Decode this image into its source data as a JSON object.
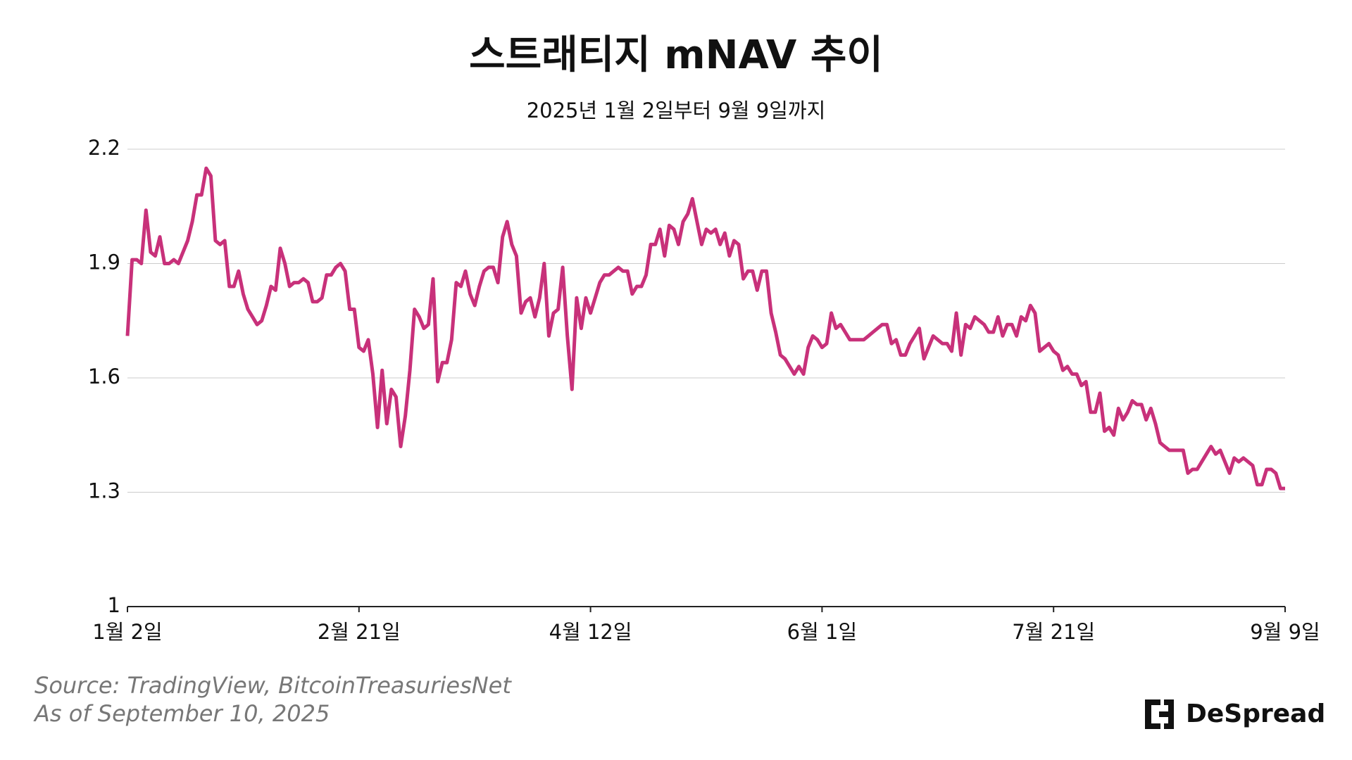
{
  "chart_data": {
    "type": "line",
    "title": "스트래티지 mNAV 추이",
    "subtitle": "2025년 1월 2일부터 9월 9일까지",
    "color": "#c8317a",
    "grid": true,
    "xlim": [
      0,
      250
    ],
    "xticks": [
      {
        "value": 0,
        "label": "1월 2일"
      },
      {
        "value": 50,
        "label": "2월 21일"
      },
      {
        "value": 100,
        "label": "4월 12일"
      },
      {
        "value": 150,
        "label": "6월 1일"
      },
      {
        "value": 200,
        "label": "7월 21일"
      },
      {
        "value": 250,
        "label": "9월 9일"
      }
    ],
    "ylim": [
      1,
      2.2
    ],
    "yticks": [
      1,
      1.3,
      1.6,
      1.9,
      2.2
    ],
    "x": [
      0,
      1,
      2,
      3,
      4,
      5,
      6,
      7,
      8,
      9,
      10,
      11,
      12,
      13,
      14,
      15,
      16,
      17,
      18,
      19,
      20,
      21,
      22,
      23,
      24,
      25,
      26,
      27,
      28,
      29,
      30,
      31,
      32,
      33,
      34,
      35,
      36,
      37,
      38,
      39,
      40,
      41,
      42,
      43,
      44,
      45,
      46,
      47,
      48,
      49,
      50,
      51,
      52,
      53,
      54,
      55,
      56,
      57,
      58,
      59,
      60,
      61,
      62,
      63,
      64,
      65,
      66,
      67,
      68,
      69,
      70,
      71,
      72,
      73,
      74,
      75,
      76,
      77,
      78,
      79,
      80,
      81,
      82,
      83,
      84,
      85,
      86,
      87,
      88,
      89,
      90,
      91,
      92,
      93,
      94,
      95,
      96,
      97,
      98,
      99,
      100,
      101,
      102,
      103,
      104,
      105,
      106,
      107,
      108,
      109,
      110,
      111,
      112,
      113,
      114,
      115,
      116,
      117,
      118,
      119,
      120,
      121,
      122,
      123,
      124,
      125,
      126,
      127,
      128,
      129,
      130,
      131,
      132,
      133,
      134,
      135,
      136,
      137,
      138,
      139,
      140,
      141,
      142,
      143,
      144,
      145,
      146,
      147,
      148,
      149,
      150,
      151,
      152,
      153,
      154,
      155,
      156,
      157,
      158,
      159,
      160,
      161,
      162,
      163,
      164,
      165,
      166,
      167,
      168,
      169,
      170,
      171,
      172,
      173,
      174,
      175,
      176,
      177,
      178,
      179,
      180,
      181,
      182,
      183,
      184,
      185,
      186,
      187,
      188,
      189,
      190,
      191,
      192,
      193,
      194,
      195,
      196,
      197,
      198,
      199,
      200,
      201,
      202,
      203,
      204,
      205,
      206,
      207,
      208,
      209,
      210,
      211,
      212,
      213,
      214,
      215,
      216,
      217,
      218,
      219,
      220,
      221,
      222,
      223,
      224,
      225,
      226,
      227,
      228,
      229,
      230,
      231,
      232,
      233,
      234,
      235,
      236,
      237,
      238,
      239,
      240,
      241,
      242,
      243,
      244,
      245,
      246,
      247,
      248,
      249,
      250
    ],
    "values": [
      1.71,
      1.91,
      1.91,
      1.9,
      2.04,
      1.93,
      1.92,
      1.97,
      1.9,
      1.9,
      1.91,
      1.9,
      1.93,
      1.96,
      2.01,
      2.08,
      2.08,
      2.15,
      2.13,
      1.96,
      1.95,
      1.96,
      1.84,
      1.84,
      1.88,
      1.82,
      1.78,
      1.76,
      1.74,
      1.75,
      1.79,
      1.84,
      1.83,
      1.94,
      1.9,
      1.84,
      1.85,
      1.85,
      1.86,
      1.85,
      1.8,
      1.8,
      1.81,
      1.87,
      1.87,
      1.89,
      1.9,
      1.88,
      1.78,
      1.78,
      1.68,
      1.67,
      1.7,
      1.61,
      1.47,
      1.62,
      1.48,
      1.57,
      1.55,
      1.42,
      1.5,
      1.62,
      1.78,
      1.76,
      1.73,
      1.74,
      1.86,
      1.59,
      1.64,
      1.64,
      1.7,
      1.85,
      1.84,
      1.88,
      1.82,
      1.79,
      1.84,
      1.88,
      1.89,
      1.89,
      1.85,
      1.97,
      2.01,
      1.95,
      1.92,
      1.77,
      1.8,
      1.81,
      1.76,
      1.81,
      1.9,
      1.71,
      1.77,
      1.78,
      1.89,
      1.71,
      1.57,
      1.81,
      1.73,
      1.81,
      1.77,
      1.81,
      1.85,
      1.87,
      1.87,
      1.88,
      1.89,
      1.88,
      1.88,
      1.82,
      1.84,
      1.84,
      1.87,
      1.95,
      1.95,
      1.99,
      1.92,
      2.0,
      1.99,
      1.95,
      2.01,
      2.03,
      2.07,
      2.01,
      1.95,
      1.99,
      1.98,
      1.99,
      1.95,
      1.98,
      1.92,
      1.96,
      1.95,
      1.86,
      1.88,
      1.88,
      1.83,
      1.88,
      1.88,
      1.77,
      1.72,
      1.66,
      1.65,
      1.63,
      1.61,
      1.63,
      1.61,
      1.68,
      1.71,
      1.7,
      1.68,
      1.69,
      1.77,
      1.73,
      1.74,
      1.72,
      1.7,
      1.7,
      1.7,
      1.7,
      1.71,
      1.72,
      1.73,
      1.74,
      1.74,
      1.69,
      1.7,
      1.66,
      1.66,
      1.69,
      1.71,
      1.73,
      1.65,
      1.68,
      1.71,
      1.7,
      1.69,
      1.69,
      1.67,
      1.77,
      1.66,
      1.74,
      1.73,
      1.76,
      1.75,
      1.74,
      1.72,
      1.72,
      1.76,
      1.71,
      1.74,
      1.74,
      1.71,
      1.76,
      1.75,
      1.79,
      1.77,
      1.67,
      1.68,
      1.69,
      1.67,
      1.66,
      1.62,
      1.63,
      1.61,
      1.61,
      1.58,
      1.59,
      1.51,
      1.51,
      1.56,
      1.46,
      1.47,
      1.45,
      1.52,
      1.49,
      1.51,
      1.54,
      1.53,
      1.53,
      1.49,
      1.52,
      1.48,
      1.43,
      1.42,
      1.41,
      1.41,
      1.41,
      1.41,
      1.35,
      1.36,
      1.36,
      1.38,
      1.4,
      1.42,
      1.4,
      1.41,
      1.38,
      1.35,
      1.39,
      1.38,
      1.39,
      1.38,
      1.37,
      1.32,
      1.32,
      1.36,
      1.36,
      1.35,
      1.31,
      1.31
    ]
  },
  "footer": {
    "source": "Source: TradingView, BitcoinTreasuriesNet",
    "date": "As of September 10, 2025",
    "logo": "DeSpread"
  }
}
